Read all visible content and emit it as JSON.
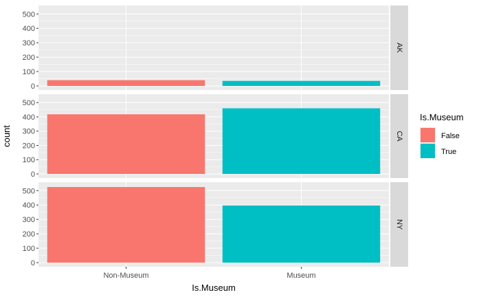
{
  "chart_data": {
    "type": "bar",
    "facet_by": "state",
    "xlabel": "Is.Museum",
    "ylabel": "count",
    "categories": [
      "Non-Museum",
      "Museum"
    ],
    "ylim": [
      0,
      530
    ],
    "yticks": [
      0,
      100,
      200,
      300,
      400,
      500
    ],
    "panels": [
      {
        "label": "AK",
        "values": [
          40,
          35
        ]
      },
      {
        "label": "CA",
        "values": [
          418,
          460
        ]
      },
      {
        "label": "NY",
        "values": [
          525,
          397
        ]
      }
    ],
    "legend": {
      "title": "Is.Museum",
      "position": "right",
      "entries": [
        {
          "label": "False",
          "color": "#F8766D"
        },
        {
          "label": "True",
          "color": "#00BFC4"
        }
      ]
    },
    "colors": {
      "panel_bg": "#EBEBEB",
      "grid": "#FFFFFF",
      "strip_bg": "#D9D9D9"
    },
    "grid": true
  }
}
